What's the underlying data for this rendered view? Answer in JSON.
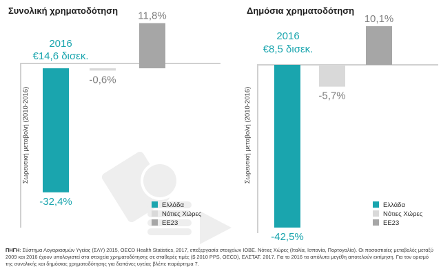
{
  "chart_data": [
    {
      "type": "bar",
      "title": "Συνολική χρηματοδότηση",
      "ylabel": "Σωρευτική μεταβολή (2010-2016)",
      "categories": [
        "Ελλάδα",
        "Νότιες Χώρες",
        "ΕΕ23"
      ],
      "values": [
        -32.4,
        -0.6,
        11.8
      ],
      "value_labels": [
        "-32,4%",
        "-0,6%",
        "11,8%"
      ],
      "colors": [
        "#1aa5ae",
        "#d9d9d9",
        "#a6a6a6"
      ],
      "annotation": {
        "year": "2016",
        "amount": "€14,6 δισεκ."
      },
      "legend": [
        "Ελλάδα",
        "Νότιες Χώρες",
        "ΕΕ23"
      ],
      "legend_position": "bottom-right",
      "ylim": [
        -45,
        14
      ],
      "grid": false
    },
    {
      "type": "bar",
      "title": "Δημόσια χρηματοδότηση",
      "ylabel": "Σωρευτική μεταβολή (2010-2016)",
      "categories": [
        "Ελλάδα",
        "Νότιες Χώρες",
        "ΕΕ23"
      ],
      "values": [
        -42.5,
        -5.7,
        10.1
      ],
      "value_labels": [
        "-42,5%",
        "-5,7%",
        "10,1%"
      ],
      "colors": [
        "#1aa5ae",
        "#d9d9d9",
        "#a6a6a6"
      ],
      "annotation": {
        "year": "2016",
        "amount": "€8,5 δισεκ."
      },
      "legend": [
        "Ελλάδα",
        "Νότιες Χώρες",
        "ΕΕ23"
      ],
      "legend_position": "bottom-right",
      "ylim": [
        -45,
        14
      ],
      "grid": false
    }
  ],
  "source": {
    "label": "ΠΗΓΗ",
    "text": ": Σύστημα Λογαριασμών Υγείας (ΣΛΥ) 2015, OECD Health Statistics, 2017, επεξεργασία στοιχείων ΙΟΒΕ. Νότιες Χώρες (Ιταλία, Ισπανία, Πορτογαλία). Οι ποσοστιαίες μεταβολές μεταξύ 2009 και 2016 έχουν υπολογιστεί στα στοιχεία χρηματοδότησης σε σταθερές τιμές ($ 2010 PPS, OECD), ΕΛΣΤΑΤ. 2017. Για το 2016 τα απόλυτα μεγέθη αποτελούν εκτίμηση. Για τον ορισμό της συνολικής και δημόσιας χρηματοδότησης για δαπάνες υγείας βλέπε παράρτημα 7."
  }
}
